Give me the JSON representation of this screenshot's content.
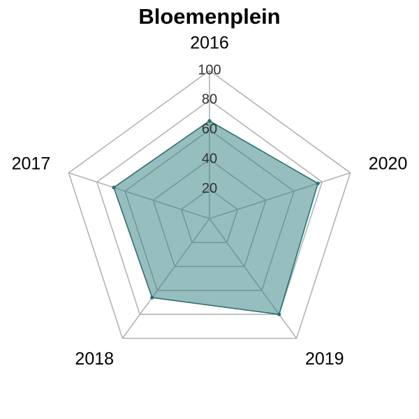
{
  "chart_data": {
    "type": "radar",
    "title": "Bloemenplein",
    "categories": [
      "2016",
      "2020",
      "2019",
      "2018",
      "2017"
    ],
    "values": [
      66,
      77,
      80,
      66,
      68
    ],
    "rlim": [
      0,
      100
    ],
    "ticks": [
      "20",
      "40",
      "60",
      "80",
      "100"
    ],
    "grid": true,
    "colors": {
      "fill": "#2e7d7d",
      "stroke": "#2a6f6f",
      "grid": "#b3b3b3"
    }
  }
}
